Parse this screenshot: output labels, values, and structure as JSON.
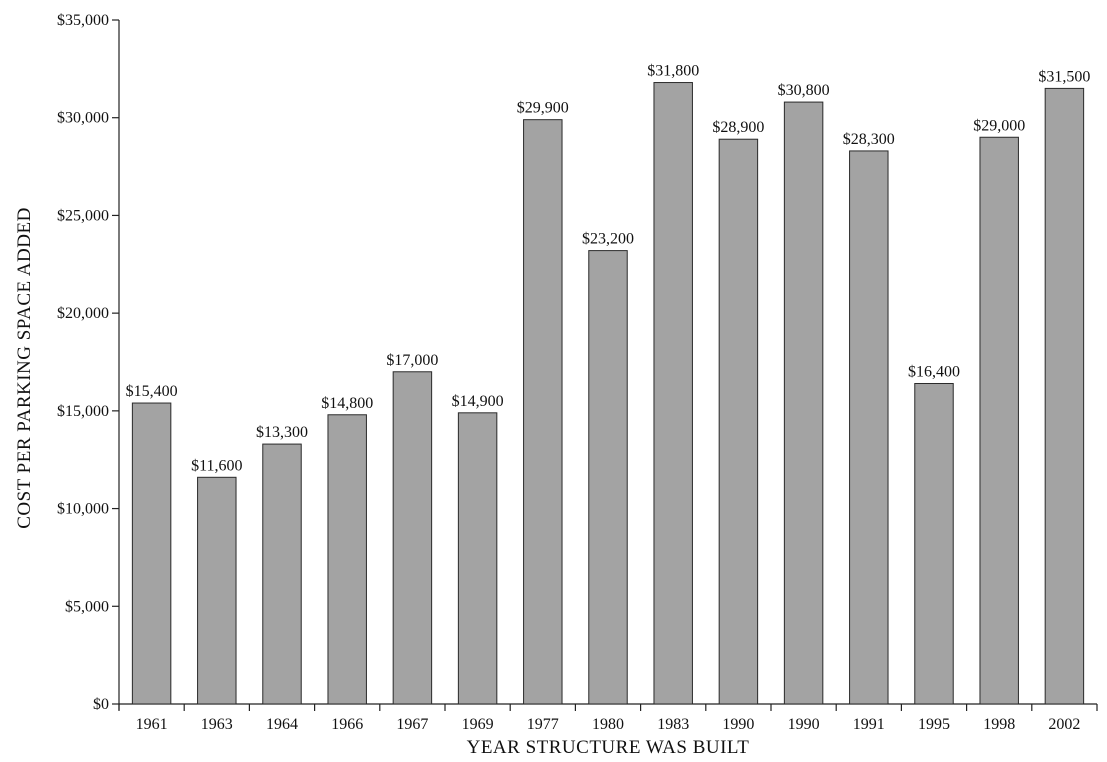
{
  "chart_data": {
    "type": "bar",
    "title": "",
    "xlabel": "YEAR STRUCTURE WAS BUILT",
    "ylabel": "COST PER PARKING SPACE ADDED",
    "categories": [
      "1961",
      "1963",
      "1964",
      "1966",
      "1967",
      "1969",
      "1977",
      "1980",
      "1983",
      "1990",
      "1990",
      "1991",
      "1995",
      "1998",
      "2002"
    ],
    "values": [
      15400,
      11600,
      13300,
      14800,
      17000,
      14900,
      29900,
      23200,
      31800,
      28900,
      30800,
      28300,
      16400,
      29000,
      31500
    ],
    "value_labels": [
      "$15,400",
      "$11,600",
      "$13,300",
      "$14,800",
      "$17,000",
      "$14,900",
      "$29,900",
      "$23,200",
      "$31,800",
      "$28,900",
      "$30,800",
      "$28,300",
      "$16,400",
      "$29,000",
      "$31,500"
    ],
    "ylim": [
      0,
      35000
    ],
    "yticks": [
      0,
      5000,
      10000,
      15000,
      20000,
      25000,
      30000,
      35000
    ],
    "ytick_labels": [
      "$0",
      "$5,000",
      "$10,000",
      "$15,000",
      "$20,000",
      "$25,000",
      "$30,000",
      "$35,000"
    ],
    "grid": false,
    "bar_color": "#a3a3a3"
  }
}
